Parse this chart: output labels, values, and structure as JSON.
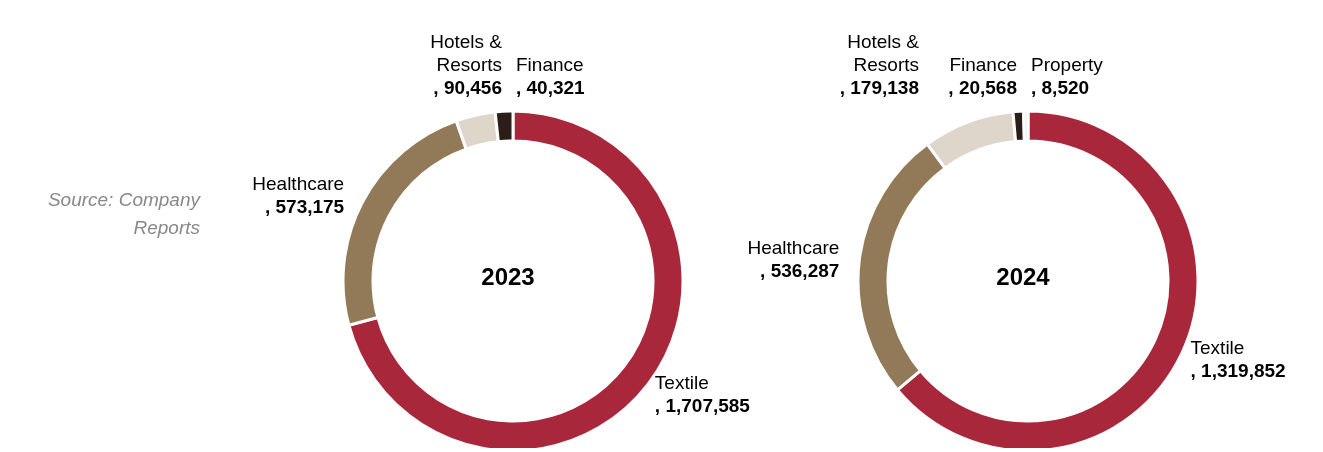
{
  "chart_data": [
    {
      "type": "donut",
      "title": "2023",
      "categories": [
        "Textile",
        "Healthcare",
        "Hotels & Resorts",
        "Finance"
      ],
      "values": [
        1707585,
        573175,
        90456,
        40321
      ],
      "value_labels": [
        ", 1,707,585",
        ", 573,175",
        ", 90,456",
        ", 40,321"
      ],
      "colors": [
        "#a8273a",
        "#927a58",
        "#ded5cb",
        "#2b1d17"
      ],
      "annotations": [
        "Source: Company Reports"
      ]
    },
    {
      "type": "donut",
      "title": "2024",
      "categories": [
        "Textile",
        "Healthcare",
        "Hotels & Resorts",
        "Finance",
        "Property"
      ],
      "values": [
        1319852,
        536287,
        179138,
        20568,
        8520
      ],
      "value_labels": [
        ", 1,319,852",
        ", 536,287",
        ", 179,138",
        ", 20,568",
        ", 8,520"
      ],
      "colors": [
        "#a8273a",
        "#927a58",
        "#ded5cb",
        "#2b1d17",
        "#f0ebe6"
      ]
    }
  ]
}
